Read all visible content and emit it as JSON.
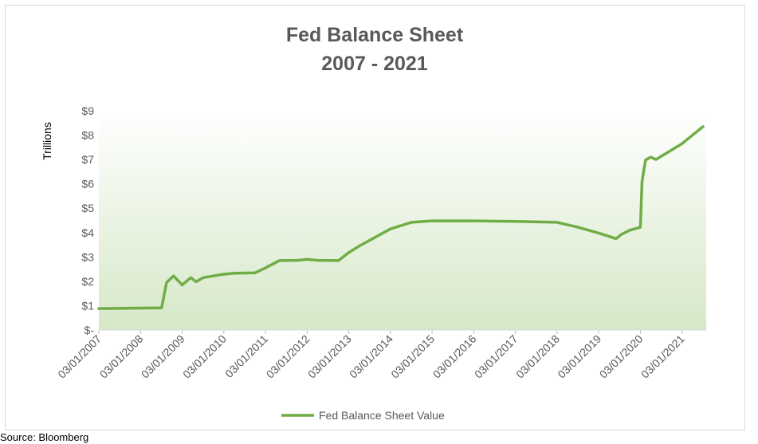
{
  "chart_data": {
    "type": "line",
    "title": "Fed Balance Sheet",
    "subtitle": "2007 - 2021",
    "xlabel": "",
    "ylabel": "Trillions",
    "ylim": [
      0,
      9
    ],
    "yticks": [
      "$-",
      "$1",
      "$2",
      "$3",
      "$4",
      "$5",
      "$6",
      "$7",
      "$8",
      "$9"
    ],
    "xticks": [
      "03/01/2007",
      "03/01/2008",
      "03/01/2009",
      "03/01/2010",
      "03/01/2011",
      "03/01/2012",
      "03/01/2013",
      "03/01/2014",
      "03/01/2015",
      "03/01/2016",
      "03/01/2017",
      "03/01/2018",
      "03/01/2019",
      "03/01/2020",
      "03/01/2021"
    ],
    "grid": false,
    "legend_position": "bottom",
    "series": [
      {
        "name": "Fed Balance Sheet Value",
        "color": "#70ad47",
        "x": [
          "2007-03-01",
          "2008-03-01",
          "2008-09-01",
          "2008-10-15",
          "2008-12-15",
          "2009-03-01",
          "2009-05-15",
          "2009-07-01",
          "2009-09-01",
          "2010-03-01",
          "2010-06-01",
          "2010-12-01",
          "2011-03-01",
          "2011-07-01",
          "2011-12-01",
          "2012-03-01",
          "2012-06-01",
          "2012-12-01",
          "2013-03-01",
          "2013-06-01",
          "2014-03-01",
          "2014-09-01",
          "2015-03-01",
          "2016-03-01",
          "2017-03-01",
          "2018-03-01",
          "2018-09-01",
          "2019-03-01",
          "2019-08-01",
          "2019-09-15",
          "2019-12-01",
          "2020-03-01",
          "2020-03-15",
          "2020-04-15",
          "2020-06-01",
          "2020-07-15",
          "2021-03-01",
          "2021-09-01"
        ],
        "y": [
          0.88,
          0.9,
          0.91,
          1.95,
          2.22,
          1.85,
          2.15,
          1.98,
          2.15,
          2.29,
          2.33,
          2.35,
          2.55,
          2.85,
          2.86,
          2.9,
          2.86,
          2.85,
          3.18,
          3.45,
          4.15,
          4.42,
          4.48,
          4.48,
          4.46,
          4.42,
          4.22,
          3.98,
          3.75,
          3.92,
          4.1,
          4.22,
          6.1,
          6.98,
          7.1,
          7.0,
          7.65,
          8.35
        ]
      }
    ]
  },
  "source_note": "Source: Bloomberg"
}
